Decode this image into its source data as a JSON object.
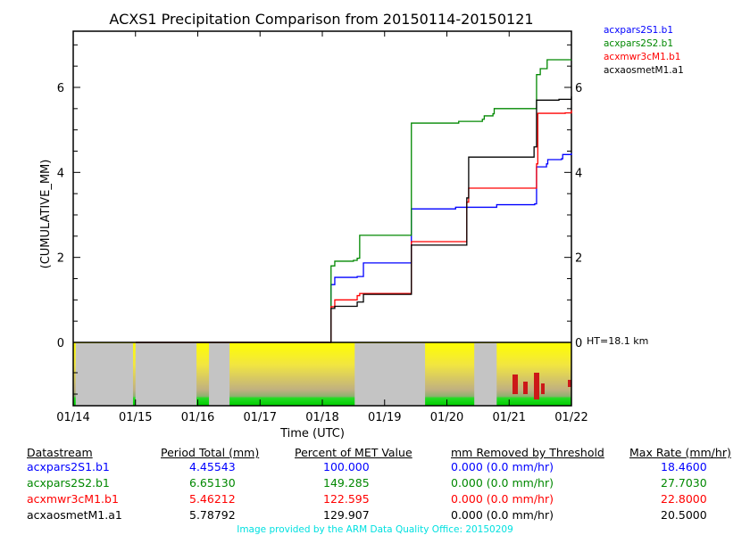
{
  "chart_data": {
    "type": "line",
    "title": "ACXS1 Precipitation Comparison from 20150114-20150121",
    "xlabel": "Time (UTC)",
    "ylabel": "(CUMULATIVE_MM)",
    "x_tick_labels": [
      "01/14",
      "01/15",
      "01/16",
      "01/17",
      "01/18",
      "01/19",
      "01/20",
      "01/21",
      "01/22"
    ],
    "y_tick_labels": [
      "0",
      "2",
      "4",
      "6"
    ],
    "y_ticks": [
      0,
      2,
      4,
      6
    ],
    "xlim_days": [
      0,
      8
    ],
    "ylim": [
      0,
      7.3
    ],
    "right_axis_labels": [
      "0",
      "2",
      "4",
      "6"
    ],
    "curtain_label": "HT=18.1 km",
    "legend_position": "top-right",
    "series": [
      {
        "name": "acxpars2S1.b1",
        "color": "#0000ff",
        "points": [
          [
            1,
            0
          ],
          [
            4.14,
            0
          ],
          [
            4.14,
            1.36
          ],
          [
            4.2,
            1.36
          ],
          [
            4.2,
            1.53
          ],
          [
            4.56,
            1.55
          ],
          [
            4.66,
            1.87
          ],
          [
            5.43,
            1.9
          ],
          [
            5.43,
            3.14
          ],
          [
            6.14,
            3.18
          ],
          [
            6.8,
            3.24
          ],
          [
            7.41,
            3.26
          ],
          [
            7.44,
            4.13
          ],
          [
            7.6,
            4.2
          ],
          [
            7.62,
            4.3
          ],
          [
            7.84,
            4.32
          ],
          [
            7.86,
            4.42
          ],
          [
            8,
            4.455
          ]
        ]
      },
      {
        "name": "acxpars2S2.b1",
        "color": "#008800",
        "points": [
          [
            1,
            0
          ],
          [
            4.14,
            0
          ],
          [
            4.14,
            1.8
          ],
          [
            4.2,
            1.8
          ],
          [
            4.2,
            1.91
          ],
          [
            4.5,
            1.93
          ],
          [
            4.56,
            1.98
          ],
          [
            4.6,
            2.52
          ],
          [
            5.39,
            2.52
          ],
          [
            5.43,
            2.6
          ],
          [
            5.43,
            5.16
          ],
          [
            6.19,
            5.2
          ],
          [
            6.57,
            5.25
          ],
          [
            6.6,
            5.33
          ],
          [
            6.74,
            5.38
          ],
          [
            6.76,
            5.5
          ],
          [
            7.41,
            5.5
          ],
          [
            7.44,
            6.3
          ],
          [
            7.5,
            6.44
          ],
          [
            7.61,
            6.44
          ],
          [
            7.61,
            6.65
          ],
          [
            8,
            6.651
          ]
        ]
      },
      {
        "name": "acxmwr3cM1.b1",
        "color": "#ff0000",
        "points": [
          [
            1,
            0
          ],
          [
            4.14,
            0
          ],
          [
            4.14,
            0.84
          ],
          [
            4.2,
            0.86
          ],
          [
            4.2,
            1.0
          ],
          [
            4.5,
            1.0
          ],
          [
            4.56,
            1.1
          ],
          [
            4.6,
            1.15
          ],
          [
            5.38,
            1.15
          ],
          [
            5.43,
            1.5
          ],
          [
            5.43,
            2.37
          ],
          [
            6.28,
            2.37
          ],
          [
            6.32,
            3.3
          ],
          [
            6.35,
            3.63
          ],
          [
            7.41,
            3.63
          ],
          [
            7.44,
            4.2
          ],
          [
            7.46,
            5.39
          ],
          [
            7.9,
            5.4
          ],
          [
            8,
            5.462
          ]
        ]
      },
      {
        "name": "acxaosmetM1.a1",
        "color": "#000000",
        "points": [
          [
            1,
            0
          ],
          [
            4.14,
            0
          ],
          [
            4.14,
            0.8
          ],
          [
            4.2,
            0.82
          ],
          [
            4.2,
            0.85
          ],
          [
            4.5,
            0.85
          ],
          [
            4.56,
            0.95
          ],
          [
            4.66,
            1.13
          ],
          [
            5.38,
            1.13
          ],
          [
            5.43,
            1.3
          ],
          [
            5.43,
            2.29
          ],
          [
            6.28,
            2.29
          ],
          [
            6.32,
            3.4
          ],
          [
            6.35,
            4.36
          ],
          [
            7.38,
            4.36
          ],
          [
            7.4,
            4.6
          ],
          [
            7.44,
            5.7
          ],
          [
            7.8,
            5.72
          ],
          [
            8,
            5.788
          ]
        ]
      }
    ],
    "curtain_missing_days": [
      [
        0.04,
        0.96
      ],
      [
        1.0,
        1.98
      ],
      [
        2.18,
        2.51
      ],
      [
        4.52,
        5.65
      ],
      [
        6.44,
        6.8
      ]
    ]
  },
  "table": {
    "headers": [
      "Datastream",
      "Period Total (mm)",
      "Percent of MET Value",
      "mm Removed by Threshold",
      "Max Rate (mm/hr)"
    ],
    "rows": [
      {
        "color": "#0000ff",
        "cells": [
          "acxpars2S1.b1",
          "4.45543",
          "100.000",
          "0.000 (0.0 mm/hr)",
          "18.4600"
        ]
      },
      {
        "color": "#008800",
        "cells": [
          "acxpars2S2.b1",
          "6.65130",
          "149.285",
          "0.000 (0.0 mm/hr)",
          "27.7030"
        ]
      },
      {
        "color": "#ff0000",
        "cells": [
          "acxmwr3cM1.b1",
          "5.46212",
          "122.595",
          "0.000 (0.0 mm/hr)",
          "22.8000"
        ]
      },
      {
        "color": "#000000",
        "cells": [
          "acxaosmetM1.a1",
          "5.78792",
          "129.907",
          "0.000 (0.0 mm/hr)",
          "20.5000"
        ]
      }
    ]
  },
  "footer": "Image provided by the ARM Data Quality Office: 20150209"
}
